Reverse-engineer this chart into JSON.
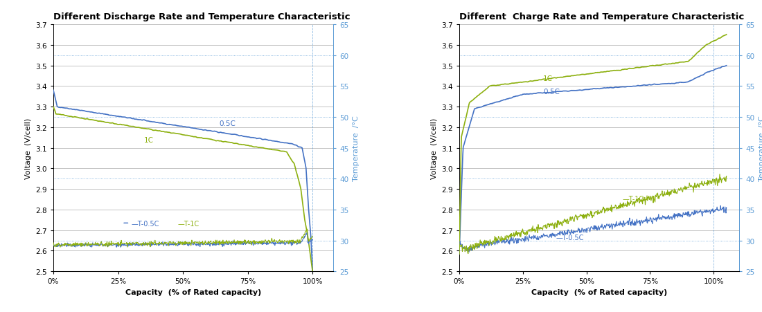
{
  "left_title": "Different Discharge Rate and Temperature Characteristic",
  "right_title": "Different  Charge Rate and Temperature Characteristic",
  "xlabel": "Capacity  (% of Rated capacity)",
  "ylabel_left": "Voltage  (V/cell)",
  "ylabel_right": "Temperature  /°C",
  "voltage_ylim": [
    2.5,
    3.7
  ],
  "temp_ylim": [
    25,
    65
  ],
  "voltage_yticks": [
    2.5,
    2.6,
    2.7,
    2.8,
    2.9,
    3.0,
    3.1,
    3.2,
    3.3,
    3.4,
    3.5,
    3.6,
    3.7
  ],
  "temp_yticks": [
    25,
    30,
    35,
    40,
    45,
    50,
    55,
    60,
    65
  ],
  "temp_dotted_vals": [
    30,
    40,
    50,
    60
  ],
  "color_blue": "#4472C4",
  "color_green": "#8DB010",
  "color_temp_blue": "#5B9BD5",
  "bg_color": "#FFFFFF",
  "grid_color": "#AAAAAA",
  "title_fontsize": 9.5,
  "axis_fontsize": 8,
  "tick_fontsize": 7.5,
  "legend_fontsize": 7
}
